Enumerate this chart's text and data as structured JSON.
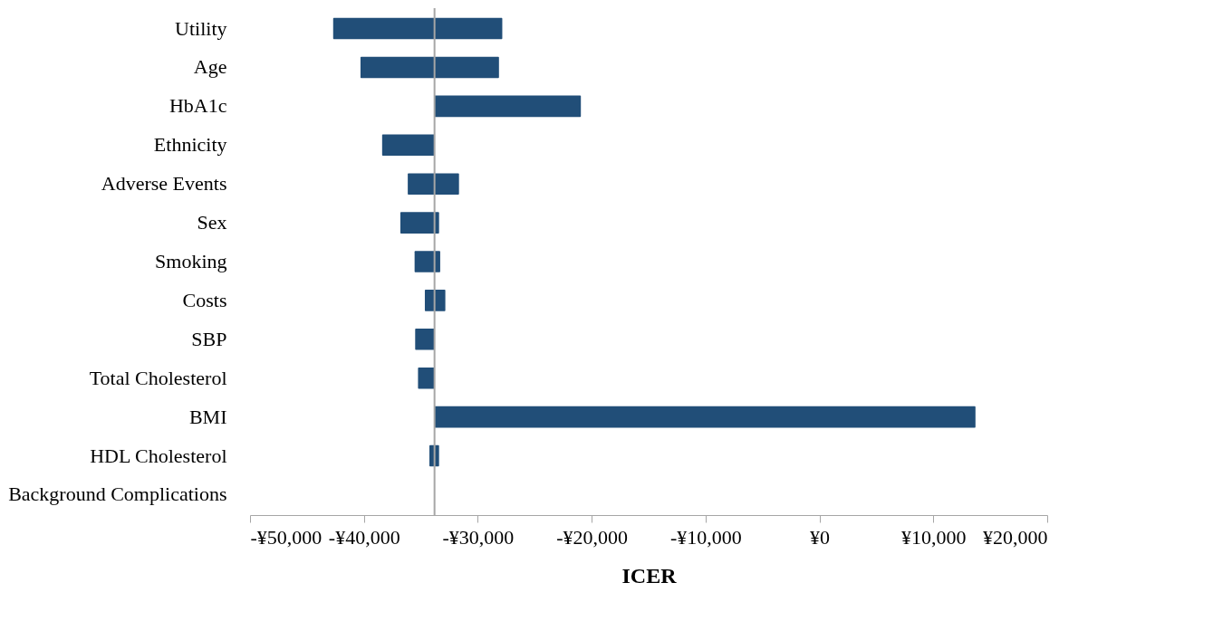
{
  "chart_data": {
    "type": "bar",
    "orientation": "horizontal",
    "xlabel": "ICER",
    "categories": [
      "Utility",
      "Age",
      "HbA1c",
      "Ethnicity",
      "Adverse Events",
      "Sex",
      "Smoking",
      "Costs",
      "SBP",
      "Total Cholesterol",
      "BMI",
      "HDL Cholesterol",
      "Background Complications"
    ],
    "base": [
      -42700,
      -40300,
      -33800,
      -38400,
      -36150,
      -36800,
      -35550,
      -34650,
      -35500,
      -35250,
      -33800,
      -34250,
      null
    ],
    "values": [
      14850,
      12160,
      12850,
      4600,
      4500,
      3400,
      2250,
      1800,
      1700,
      1450,
      47500,
      850,
      null
    ],
    "color": "#214e78",
    "xlim": [
      -50000,
      20000
    ],
    "xticks": [
      {
        "value": -50000,
        "label": "-¥50,000"
      },
      {
        "value": -40000,
        "label": "-¥40,000"
      },
      {
        "value": -30000,
        "label": "-¥30,000"
      },
      {
        "value": -20000,
        "label": "-¥20,000"
      },
      {
        "value": -10000,
        "label": "-¥10,000"
      },
      {
        "value": 0,
        "label": "¥0"
      },
      {
        "value": 10000,
        "label": "¥10,000"
      },
      {
        "value": 20000,
        "label": "¥20,000"
      }
    ],
    "ref_lines": [
      {
        "axis": "x",
        "value": -33800,
        "color": "#a6a6a6"
      }
    ],
    "grid": false
  }
}
